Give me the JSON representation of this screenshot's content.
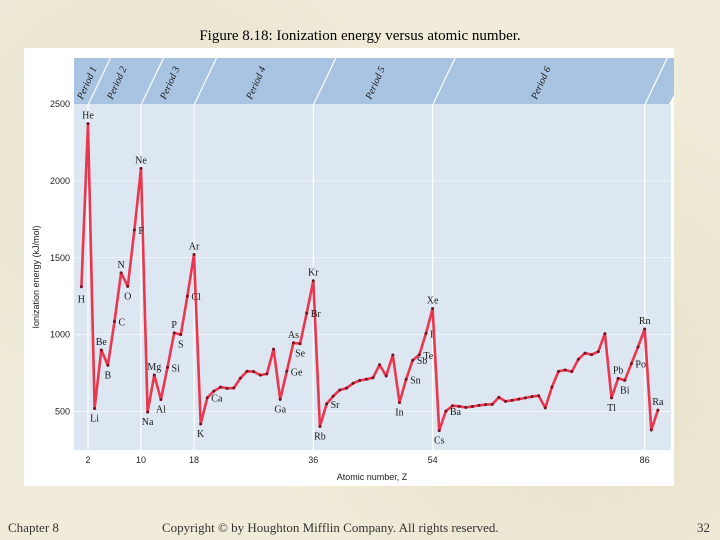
{
  "slide": {
    "title": "Figure 8.18: Ionization energy versus atomic number.",
    "footer_left": "Chapter 8",
    "footer_center": "Copyright © by Houghton Mifflin Company. All rights reserved.",
    "page_number": "32"
  },
  "colors": {
    "background": "#f1ecd9",
    "plot_area": "#dce7f2",
    "banner": "#a9c4e2",
    "line": "#e8374e",
    "marker": "#7a1020",
    "grid": "#ffffff"
  },
  "chart_data": {
    "type": "line",
    "title": "",
    "xlabel": "Atomic number, Z",
    "ylabel": "Ionization energy (kJ/mol)",
    "xlim": [
      1,
      88
    ],
    "ylim": [
      250,
      2500
    ],
    "yticks": [
      500,
      1000,
      1500,
      2000,
      2500
    ],
    "xticks": [
      2,
      10,
      18,
      36,
      54,
      86
    ],
    "x_gridlines": [
      2,
      10,
      18,
      36,
      54,
      86
    ],
    "grid": true,
    "periods": [
      {
        "label": "Period 1",
        "x": 1.5
      },
      {
        "label": "Period 2",
        "x": 6
      },
      {
        "label": "Period 3",
        "x": 14
      },
      {
        "label": "Period 4",
        "x": 27
      },
      {
        "label": "Period 5",
        "x": 45
      },
      {
        "label": "Period 6",
        "x": 70
      }
    ],
    "series": [
      {
        "x": [
          1,
          2,
          3,
          4,
          5,
          6,
          7,
          8,
          9,
          10,
          11,
          12,
          13,
          14,
          15,
          16,
          17,
          18,
          19,
          20,
          21,
          22,
          23,
          24,
          25,
          26,
          27,
          28,
          29,
          30,
          31,
          32,
          33,
          34,
          35,
          36,
          37,
          38,
          39,
          40,
          41,
          42,
          43,
          44,
          45,
          46,
          47,
          48,
          49,
          50,
          51,
          52,
          53,
          54,
          55,
          56,
          57,
          58,
          59,
          60,
          61,
          62,
          63,
          64,
          65,
          66,
          67,
          68,
          69,
          70,
          71,
          72,
          73,
          74,
          75,
          76,
          77,
          78,
          79,
          80,
          81,
          82,
          83,
          84,
          85,
          86,
          87,
          88
        ],
        "values": [
          1312,
          2372,
          520,
          900,
          801,
          1086,
          1402,
          1314,
          1681,
          2081,
          496,
          738,
          578,
          787,
          1012,
          1000,
          1251,
          1521,
          419,
          590,
          633,
          659,
          651,
          653,
          717,
          762,
          760,
          737,
          745,
          906,
          579,
          762,
          947,
          941,
          1140,
          1351,
          403,
          550,
          600,
          640,
          652,
          684,
          702,
          710,
          720,
          804,
          731,
          868,
          558,
          709,
          834,
          869,
          1008,
          1170,
          376,
          503,
          538,
          534,
          527,
          533,
          540,
          545,
          547,
          593,
          566,
          573,
          581,
          589,
          597,
          603,
          524,
          659,
          761,
          770,
          760,
          840,
          880,
          870,
          890,
          1007,
          589,
          716,
          703,
          812,
          920,
          1037,
          380,
          509
        ]
      }
    ],
    "element_labels": [
      {
        "symbol": "H",
        "x": 1,
        "y": 1312
      },
      {
        "symbol": "He",
        "x": 2,
        "y": 2372
      },
      {
        "symbol": "Li",
        "x": 3,
        "y": 520
      },
      {
        "symbol": "Be",
        "x": 4,
        "y": 900
      },
      {
        "symbol": "B",
        "x": 5,
        "y": 801
      },
      {
        "symbol": "C",
        "x": 6,
        "y": 1086
      },
      {
        "symbol": "N",
        "x": 7,
        "y": 1402
      },
      {
        "symbol": "O",
        "x": 8,
        "y": 1314
      },
      {
        "symbol": "F",
        "x": 9,
        "y": 1681
      },
      {
        "symbol": "Ne",
        "x": 10,
        "y": 2081
      },
      {
        "symbol": "Na",
        "x": 11,
        "y": 496
      },
      {
        "symbol": "Mg",
        "x": 12,
        "y": 738
      },
      {
        "symbol": "Al",
        "x": 13,
        "y": 578
      },
      {
        "symbol": "Si",
        "x": 14,
        "y": 787
      },
      {
        "symbol": "P",
        "x": 15,
        "y": 1012
      },
      {
        "symbol": "S",
        "x": 16,
        "y": 1000
      },
      {
        "symbol": "Cl",
        "x": 17,
        "y": 1251
      },
      {
        "symbol": "Ar",
        "x": 18,
        "y": 1521
      },
      {
        "symbol": "K",
        "x": 19,
        "y": 419
      },
      {
        "symbol": "Ca",
        "x": 20,
        "y": 590
      },
      {
        "symbol": "Ga",
        "x": 31,
        "y": 579
      },
      {
        "symbol": "Ge",
        "x": 32,
        "y": 762
      },
      {
        "symbol": "As",
        "x": 33,
        "y": 947
      },
      {
        "symbol": "Se",
        "x": 34,
        "y": 941
      },
      {
        "symbol": "Br",
        "x": 35,
        "y": 1140
      },
      {
        "symbol": "Kr",
        "x": 36,
        "y": 1351
      },
      {
        "symbol": "Rb",
        "x": 37,
        "y": 403
      },
      {
        "symbol": "Sr",
        "x": 38,
        "y": 550
      },
      {
        "symbol": "In",
        "x": 49,
        "y": 558
      },
      {
        "symbol": "Sn",
        "x": 50,
        "y": 709
      },
      {
        "symbol": "Sb",
        "x": 51,
        "y": 834
      },
      {
        "symbol": "Te",
        "x": 52,
        "y": 869
      },
      {
        "symbol": "I",
        "x": 53,
        "y": 1008
      },
      {
        "symbol": "Xe",
        "x": 54,
        "y": 1170
      },
      {
        "symbol": "Cs",
        "x": 55,
        "y": 376
      },
      {
        "symbol": "Ba",
        "x": 56,
        "y": 503
      },
      {
        "symbol": "Tl",
        "x": 81,
        "y": 589
      },
      {
        "symbol": "Pb",
        "x": 82,
        "y": 716
      },
      {
        "symbol": "Bi",
        "x": 83,
        "y": 703
      },
      {
        "symbol": "Po",
        "x": 84,
        "y": 812
      },
      {
        "symbol": "Rn",
        "x": 86,
        "y": 1037
      },
      {
        "symbol": "Ra",
        "x": 88,
        "y": 509
      }
    ]
  }
}
